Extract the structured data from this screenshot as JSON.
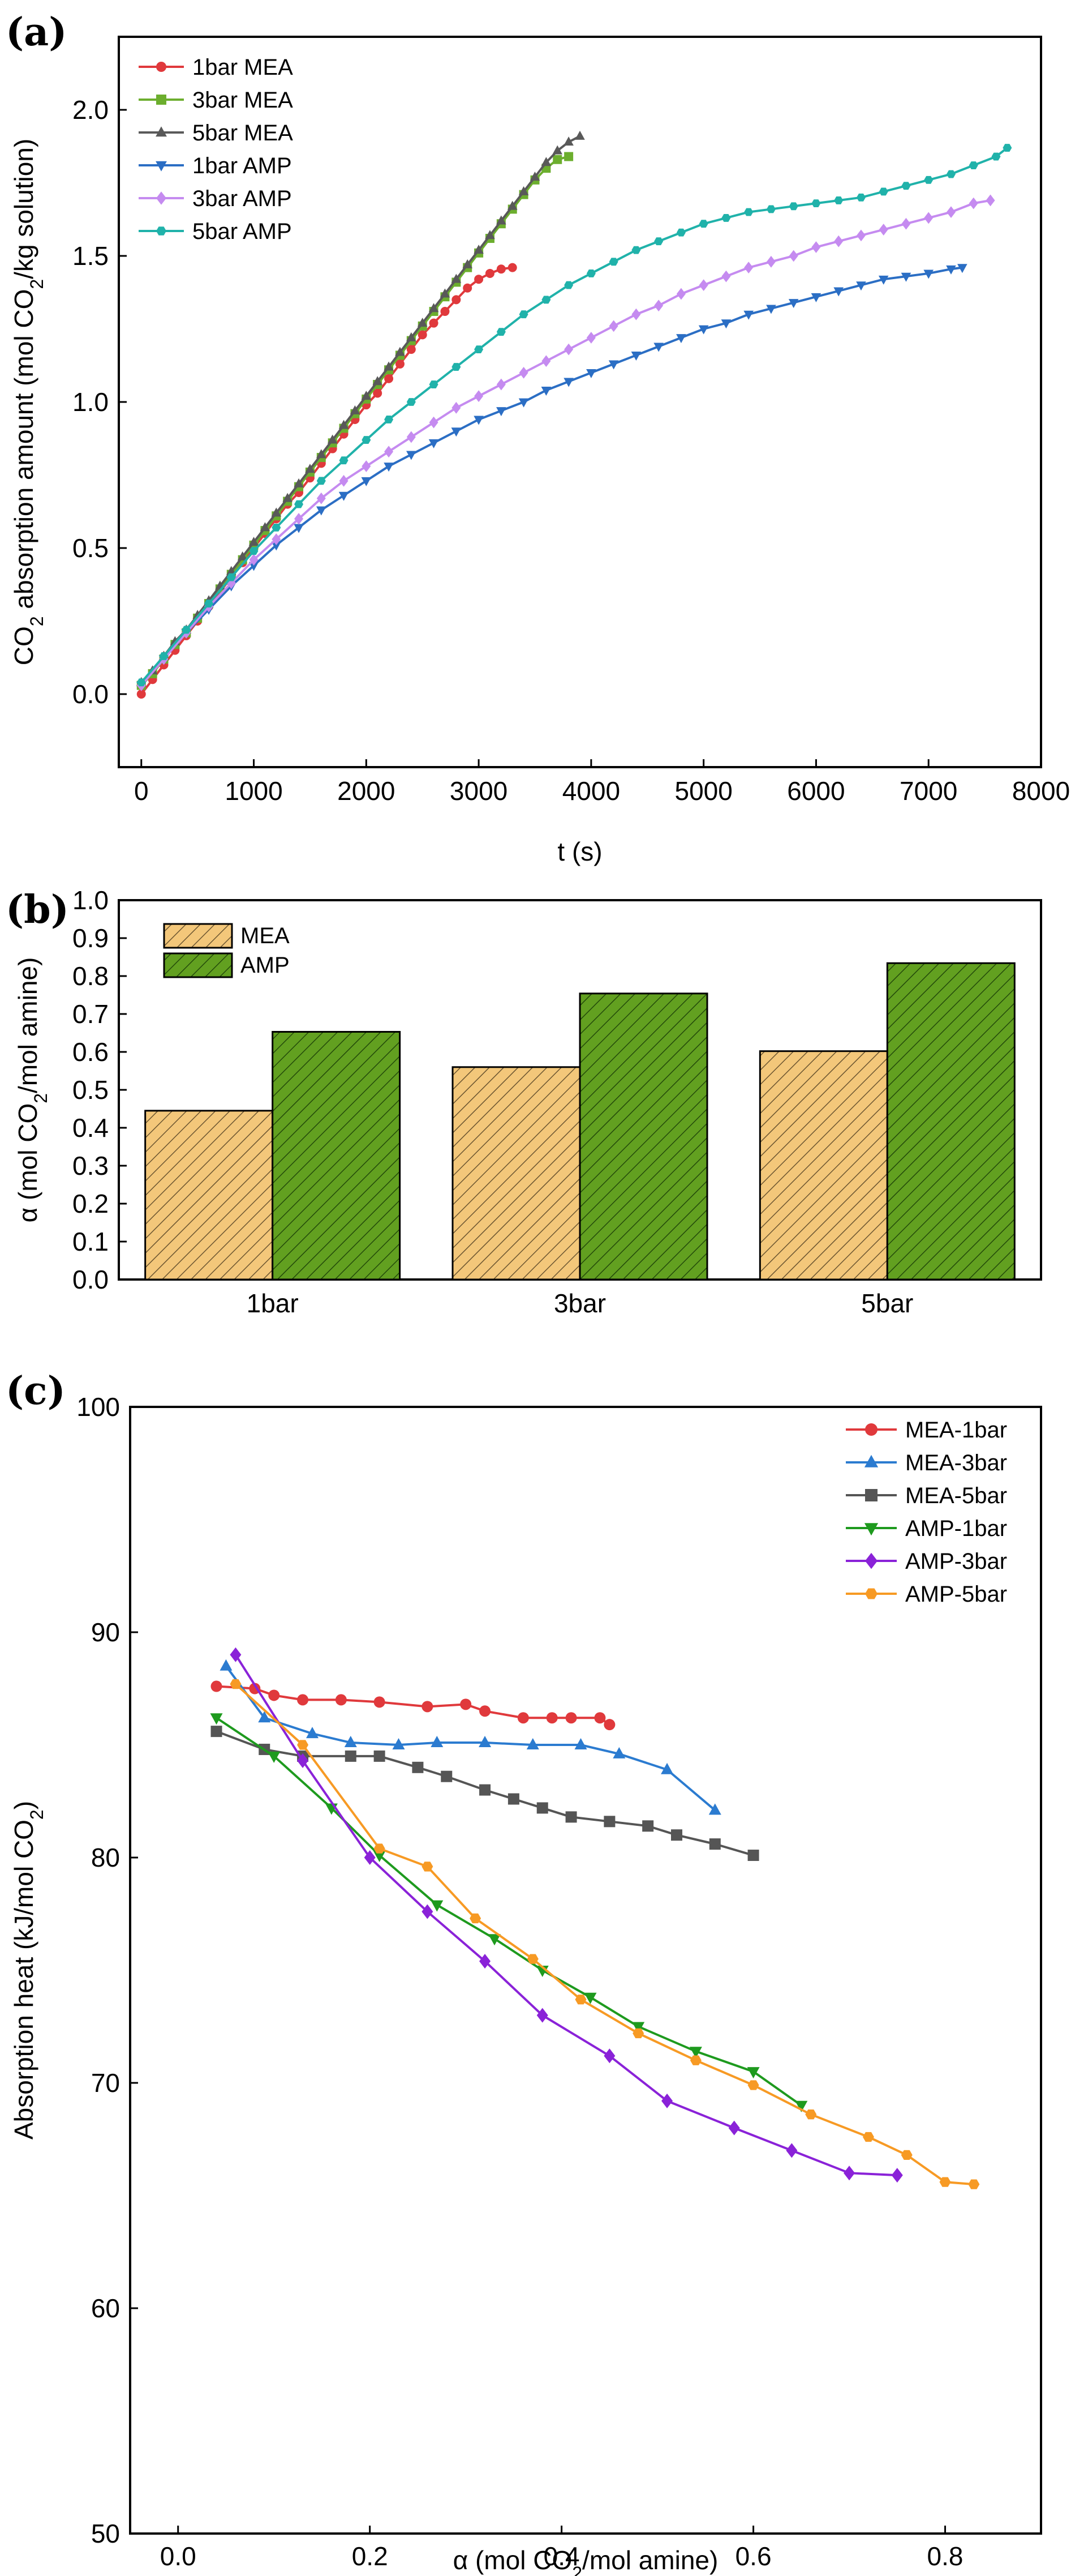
{
  "colors": {
    "mea_1bar": "#e0393c",
    "mea_3bar_a": "#6cae2e",
    "mea_5bar_a": "#595959",
    "amp_1bar_a": "#2b6ec4",
    "amp_3bar_a": "#c58bf0",
    "amp_5bar_a": "#20b2aa",
    "mea_3bar_c": "#2b7bd0",
    "mea_5bar_c": "#555555",
    "amp_1bar_c": "#1e9a1e",
    "amp_3bar_c": "#8a22d8",
    "amp_5bar_c": "#f79a24",
    "bar_mea": "#f3c77a",
    "bar_amp": "#62a020"
  },
  "chart_data": [
    {
      "panel": "(a)",
      "type": "line",
      "title": "",
      "xlabel": "t (s)",
      "ylabel_main": "CO",
      "ylabel_sub": "2",
      "ylabel_mid": " absorption amount (mol CO",
      "ylabel_sub2": "2",
      "ylabel_end": "/kg solution)",
      "xlim": [
        -200,
        8000
      ],
      "ylim": [
        -0.25,
        2.25
      ],
      "xticks": [
        0,
        1000,
        2000,
        3000,
        4000,
        5000,
        6000,
        7000,
        8000
      ],
      "xtick_labels": [
        "0",
        "1000",
        "2000",
        "3000",
        "4000",
        "5000",
        "6000",
        "7000",
        "8000"
      ],
      "yticks": [
        0.0,
        0.5,
        1.0,
        1.5,
        2.0
      ],
      "ytick_labels": [
        "0.0",
        "0.5",
        "1.0",
        "1.5",
        "2.0"
      ],
      "legend_position": "top-left",
      "series": [
        {
          "name": "1bar MEA",
          "marker": "circle",
          "x": [
            0,
            100,
            200,
            300,
            400,
            500,
            600,
            700,
            800,
            900,
            1000,
            1100,
            1200,
            1300,
            1400,
            1500,
            1600,
            1700,
            1800,
            1900,
            2000,
            2100,
            2200,
            2300,
            2400,
            2500,
            2600,
            2700,
            2800,
            2900,
            3000,
            3100,
            3200,
            3300
          ],
          "y": [
            0.0,
            0.05,
            0.1,
            0.15,
            0.2,
            0.25,
            0.3,
            0.35,
            0.4,
            0.45,
            0.5,
            0.55,
            0.6,
            0.65,
            0.69,
            0.74,
            0.79,
            0.84,
            0.89,
            0.94,
            0.99,
            1.03,
            1.08,
            1.13,
            1.18,
            1.23,
            1.27,
            1.31,
            1.35,
            1.39,
            1.42,
            1.44,
            1.455,
            1.46
          ]
        },
        {
          "name": "3bar MEA",
          "marker": "square",
          "x": [
            0,
            100,
            200,
            300,
            400,
            500,
            600,
            700,
            800,
            900,
            1000,
            1100,
            1200,
            1300,
            1400,
            1500,
            1600,
            1700,
            1800,
            1900,
            2000,
            2100,
            2200,
            2300,
            2400,
            2500,
            2600,
            2700,
            2800,
            2900,
            3000,
            3100,
            3200,
            3300,
            3400,
            3500,
            3600,
            3700,
            3800
          ],
          "y": [
            0.03,
            0.07,
            0.12,
            0.17,
            0.21,
            0.26,
            0.31,
            0.36,
            0.41,
            0.46,
            0.51,
            0.56,
            0.61,
            0.66,
            0.71,
            0.76,
            0.81,
            0.86,
            0.91,
            0.96,
            1.01,
            1.06,
            1.11,
            1.16,
            1.21,
            1.26,
            1.31,
            1.36,
            1.41,
            1.46,
            1.51,
            1.56,
            1.61,
            1.66,
            1.71,
            1.76,
            1.8,
            1.83,
            1.84
          ]
        },
        {
          "name": "5bar MEA",
          "marker": "triangle-up",
          "x": [
            0,
            100,
            200,
            300,
            400,
            500,
            600,
            700,
            800,
            900,
            1000,
            1100,
            1200,
            1300,
            1400,
            1500,
            1600,
            1700,
            1800,
            1900,
            2000,
            2100,
            2200,
            2300,
            2400,
            2500,
            2600,
            2700,
            2800,
            2900,
            3000,
            3100,
            3200,
            3300,
            3400,
            3500,
            3600,
            3700,
            3800,
            3900
          ],
          "y": [
            0.04,
            0.08,
            0.13,
            0.18,
            0.22,
            0.27,
            0.32,
            0.37,
            0.42,
            0.47,
            0.52,
            0.57,
            0.62,
            0.67,
            0.72,
            0.77,
            0.82,
            0.87,
            0.92,
            0.97,
            1.02,
            1.07,
            1.12,
            1.17,
            1.22,
            1.27,
            1.32,
            1.37,
            1.42,
            1.47,
            1.52,
            1.57,
            1.62,
            1.67,
            1.72,
            1.77,
            1.82,
            1.86,
            1.89,
            1.91
          ]
        },
        {
          "name": "1bar AMP",
          "marker": "triangle-down",
          "x": [
            0,
            200,
            400,
            600,
            800,
            1000,
            1200,
            1400,
            1600,
            1800,
            2000,
            2200,
            2400,
            2600,
            2800,
            3000,
            3200,
            3400,
            3600,
            3800,
            4000,
            4200,
            4400,
            4600,
            4800,
            5000,
            5200,
            5400,
            5600,
            5800,
            6000,
            6200,
            6400,
            6600,
            6800,
            7000,
            7200,
            7300
          ],
          "y": [
            0.03,
            0.12,
            0.21,
            0.29,
            0.37,
            0.44,
            0.51,
            0.57,
            0.63,
            0.68,
            0.73,
            0.78,
            0.82,
            0.86,
            0.9,
            0.94,
            0.97,
            1.0,
            1.04,
            1.07,
            1.1,
            1.13,
            1.16,
            1.19,
            1.22,
            1.25,
            1.27,
            1.3,
            1.32,
            1.34,
            1.36,
            1.38,
            1.4,
            1.42,
            1.43,
            1.44,
            1.455,
            1.46
          ]
        },
        {
          "name": "3bar AMP",
          "marker": "diamond",
          "x": [
            0,
            200,
            400,
            600,
            800,
            1000,
            1200,
            1400,
            1600,
            1800,
            2000,
            2200,
            2400,
            2600,
            2800,
            3000,
            3200,
            3400,
            3600,
            3800,
            4000,
            4200,
            4400,
            4600,
            4800,
            5000,
            5200,
            5400,
            5600,
            5800,
            6000,
            6200,
            6400,
            6600,
            6800,
            7000,
            7200,
            7400,
            7550
          ],
          "y": [
            0.03,
            0.12,
            0.21,
            0.3,
            0.38,
            0.46,
            0.53,
            0.6,
            0.67,
            0.73,
            0.78,
            0.83,
            0.88,
            0.93,
            0.98,
            1.02,
            1.06,
            1.1,
            1.14,
            1.18,
            1.22,
            1.26,
            1.3,
            1.33,
            1.37,
            1.4,
            1.43,
            1.46,
            1.48,
            1.5,
            1.53,
            1.55,
            1.57,
            1.59,
            1.61,
            1.63,
            1.65,
            1.68,
            1.69
          ]
        },
        {
          "name": "5bar AMP",
          "marker": "hexagon",
          "x": [
            0,
            200,
            400,
            600,
            800,
            1000,
            1200,
            1400,
            1600,
            1800,
            2000,
            2200,
            2400,
            2600,
            2800,
            3000,
            3200,
            3400,
            3600,
            3800,
            4000,
            4200,
            4400,
            4600,
            4800,
            5000,
            5200,
            5400,
            5600,
            5800,
            6000,
            6200,
            6400,
            6600,
            6800,
            7000,
            7200,
            7400,
            7600,
            7700
          ],
          "y": [
            0.04,
            0.13,
            0.22,
            0.31,
            0.4,
            0.49,
            0.57,
            0.65,
            0.73,
            0.8,
            0.87,
            0.94,
            1.0,
            1.06,
            1.12,
            1.18,
            1.24,
            1.3,
            1.35,
            1.4,
            1.44,
            1.48,
            1.52,
            1.55,
            1.58,
            1.61,
            1.63,
            1.65,
            1.66,
            1.67,
            1.68,
            1.69,
            1.7,
            1.72,
            1.74,
            1.76,
            1.78,
            1.81,
            1.84,
            1.87
          ]
        }
      ]
    },
    {
      "panel": "(b)",
      "type": "bar",
      "title": "",
      "xlabel": "",
      "ylabel_main": "α (mol CO",
      "ylabel_sub": "2",
      "ylabel_end": "/mol amine)",
      "ylim": [
        0.0,
        1.0
      ],
      "yticks": [
        0.0,
        0.1,
        0.2,
        0.3,
        0.4,
        0.5,
        0.6,
        0.7,
        0.8,
        0.9,
        1.0
      ],
      "ytick_labels": [
        "0.0",
        "0.1",
        "0.2",
        "0.3",
        "0.4",
        "0.5",
        "0.6",
        "0.7",
        "0.8",
        "0.9",
        "1.0"
      ],
      "categories": [
        "1bar",
        "3bar",
        "5bar"
      ],
      "legend_position": "top-left",
      "series": [
        {
          "name": "MEA",
          "values": [
            0.445,
            0.56,
            0.602
          ]
        },
        {
          "name": "AMP",
          "values": [
            0.653,
            0.754,
            0.834
          ]
        }
      ]
    },
    {
      "panel": "(c)",
      "type": "line",
      "title": "",
      "xlabel_main": "α (mol CO",
      "xlabel_sub": "2",
      "xlabel_end": "/mol amine)",
      "ylabel_main": "Absorption heat (kJ/mol CO",
      "ylabel_sub": "2",
      "ylabel_end": ")",
      "xlim": [
        -0.05,
        0.9
      ],
      "ylim": [
        50,
        100
      ],
      "xticks": [
        0.0,
        0.2,
        0.4,
        0.6,
        0.8
      ],
      "xtick_labels": [
        "0.0",
        "0.2",
        "0.4",
        "0.6",
        "0.8"
      ],
      "yticks": [
        50,
        60,
        70,
        80,
        90,
        100
      ],
      "ytick_labels": [
        "50",
        "60",
        "70",
        "80",
        "90",
        "100"
      ],
      "legend_position": "top-right",
      "series": [
        {
          "name": "MEA-1bar",
          "marker": "circle",
          "x": [
            0.04,
            0.08,
            0.1,
            0.13,
            0.17,
            0.21,
            0.26,
            0.3,
            0.32,
            0.36,
            0.39,
            0.41,
            0.44,
            0.45
          ],
          "y": [
            87.6,
            87.5,
            87.2,
            87.0,
            87.0,
            86.9,
            86.7,
            86.8,
            86.5,
            86.2,
            86.2,
            86.2,
            86.2,
            85.9
          ]
        },
        {
          "name": "MEA-3bar",
          "marker": "triangle-up",
          "x": [
            0.05,
            0.09,
            0.14,
            0.18,
            0.23,
            0.27,
            0.32,
            0.37,
            0.42,
            0.46,
            0.51,
            0.56
          ],
          "y": [
            88.5,
            86.2,
            85.5,
            85.1,
            85.0,
            85.1,
            85.1,
            85.0,
            85.0,
            84.6,
            83.9,
            82.1
          ]
        },
        {
          "name": "MEA-5bar",
          "marker": "square",
          "x": [
            0.04,
            0.09,
            0.13,
            0.18,
            0.21,
            0.25,
            0.28,
            0.32,
            0.35,
            0.38,
            0.41,
            0.45,
            0.49,
            0.52,
            0.56,
            0.6
          ],
          "y": [
            85.6,
            84.8,
            84.5,
            84.5,
            84.5,
            84.0,
            83.6,
            83.0,
            82.6,
            82.2,
            81.8,
            81.6,
            81.4,
            81.0,
            80.6,
            80.1
          ]
        },
        {
          "name": "AMP-1bar",
          "marker": "triangle-down",
          "x": [
            0.04,
            0.1,
            0.16,
            0.21,
            0.27,
            0.33,
            0.38,
            0.43,
            0.48,
            0.54,
            0.6,
            0.65
          ],
          "y": [
            86.2,
            84.5,
            82.2,
            80.1,
            77.9,
            76.4,
            75.0,
            73.8,
            72.5,
            71.4,
            70.5,
            69.0
          ]
        },
        {
          "name": "AMP-3bar",
          "marker": "diamond",
          "x": [
            0.06,
            0.13,
            0.2,
            0.26,
            0.32,
            0.38,
            0.45,
            0.51,
            0.58,
            0.64,
            0.7,
            0.75
          ],
          "y": [
            89.0,
            84.3,
            80.0,
            77.6,
            75.4,
            73.0,
            71.2,
            69.2,
            68.0,
            67.0,
            66.0,
            65.9
          ]
        },
        {
          "name": "AMP-5bar",
          "marker": "hexagon",
          "x": [
            0.06,
            0.13,
            0.21,
            0.26,
            0.31,
            0.37,
            0.42,
            0.48,
            0.54,
            0.6,
            0.66,
            0.72,
            0.76,
            0.8,
            0.83
          ],
          "y": [
            87.7,
            85.0,
            80.4,
            79.6,
            77.3,
            75.5,
            73.7,
            72.2,
            71.0,
            69.9,
            68.6,
            67.6,
            66.8,
            65.6,
            65.5
          ]
        }
      ]
    }
  ]
}
